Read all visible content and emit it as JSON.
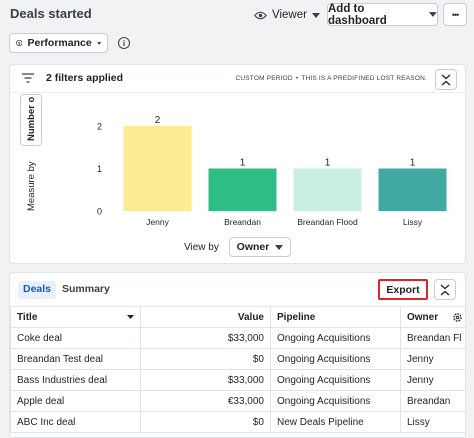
{
  "header": {
    "title": "Deals started",
    "viewer_label": "Viewer",
    "dashboard_label": "Add to dashboard",
    "more_label": "•••"
  },
  "report": {
    "type_label": "Performance",
    "info_glyph": "i"
  },
  "filters": {
    "label": "2 filters applied",
    "period": "CUSTOM PERIOD",
    "separator": "•",
    "note": "THIS IS A PREDIFINED LOST REASON."
  },
  "chart_controls": {
    "measure_label": "Measure by",
    "measure_value": "Number o",
    "viewby_label": "View by",
    "viewby_value": "Owner"
  },
  "chart_data": {
    "type": "bar",
    "categories": [
      "Jenny",
      "Breandan",
      "Breandan Flood",
      "Lissy"
    ],
    "values": [
      2,
      1,
      1,
      1
    ],
    "colors": [
      "#fdeb94",
      "#2ebd84",
      "#c9efe0",
      "#3fa9a2"
    ],
    "ylim": [
      0,
      2
    ],
    "yticks": [
      0,
      1,
      2
    ],
    "grid": false
  },
  "table": {
    "tabs": [
      "Deals",
      "Summary"
    ],
    "export_label": "Export",
    "columns": [
      "Title",
      "Value",
      "Pipeline",
      "Owner"
    ],
    "rows": [
      [
        "Coke deal",
        "$33,000",
        "Ongoing Acquisitions",
        "Breandan Fl"
      ],
      [
        "Breandan Test deal",
        "$0",
        "Ongoing Acquisitions",
        "Jenny"
      ],
      [
        "Bass Industries deal",
        "$33,000",
        "Ongoing Acquisitions",
        "Jenny"
      ],
      [
        "Apple deal",
        "€33,000",
        "Ongoing Acquisitions",
        "Breandan"
      ],
      [
        "ABC Inc deal",
        "$0",
        "New Deals Pipeline",
        "Lissy"
      ]
    ]
  }
}
